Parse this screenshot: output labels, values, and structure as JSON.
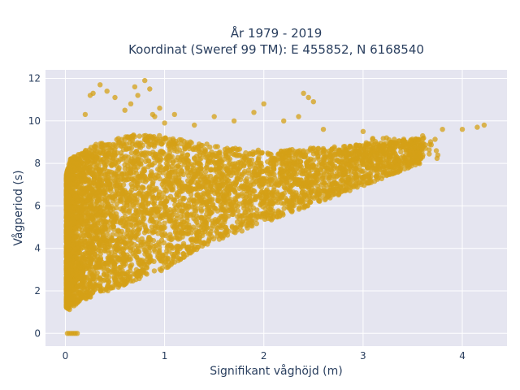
{
  "chart_data": {
    "type": "scatter",
    "title_line1": "År 1979 - 2019",
    "title_line2": "Koordinat (Sweref 99 TM): E 455852, N 6168540",
    "xlabel": "Signifikant våghöjd (m)",
    "ylabel": "Vågperiod (s)",
    "xlim": [
      -0.2,
      4.45
    ],
    "ylim": [
      -0.6,
      12.4
    ],
    "x_ticks": [
      0,
      1,
      2,
      3,
      4
    ],
    "y_ticks": [
      0,
      2,
      4,
      6,
      8,
      10,
      12
    ],
    "grid": true,
    "legend": "none",
    "colors": {
      "marker": "#d4a017",
      "plot_background": "#e5e5f0",
      "grid": "#ffffff",
      "text": "#2a3f5f"
    },
    "band": {
      "description_points": "dense cloud sampled from upper and lower envelopes",
      "x": [
        0.01,
        0.05,
        0.1,
        0.2,
        0.3,
        0.5,
        0.7,
        1.0,
        1.3,
        1.6,
        2.0,
        2.4,
        2.8,
        3.2,
        3.6
      ],
      "y_low": [
        1.2,
        1.1,
        1.3,
        1.6,
        1.8,
        2.1,
        2.5,
        3.0,
        3.9,
        4.5,
        5.2,
        5.9,
        6.6,
        7.3,
        8.0
      ],
      "y_high": [
        7.5,
        8.2,
        8.4,
        8.6,
        8.9,
        9.2,
        9.4,
        9.3,
        9.0,
        8.8,
        8.6,
        8.7,
        8.8,
        9.0,
        9.2
      ]
    },
    "zero_points": {
      "x": [
        0.02,
        0.04,
        0.06,
        0.08,
        0.1,
        0.12
      ],
      "y": [
        0,
        0,
        0,
        0,
        0,
        0
      ]
    },
    "outliers": {
      "x": [
        0.35,
        0.42,
        0.5,
        0.6,
        0.66,
        0.7,
        0.73,
        0.8,
        0.85,
        0.88,
        0.9,
        0.95,
        1.0,
        1.1,
        1.3,
        1.5,
        1.7,
        2.0,
        2.2,
        2.4,
        2.45,
        2.5,
        2.6,
        3.0,
        3.6,
        3.8,
        4.0,
        4.15,
        4.22,
        0.2,
        0.25,
        0.28,
        1.9,
        2.35
      ],
      "y": [
        11.7,
        11.4,
        11.1,
        10.5,
        10.8,
        11.6,
        11.2,
        11.9,
        11.5,
        10.3,
        10.2,
        10.6,
        9.9,
        10.3,
        9.8,
        10.2,
        10.0,
        10.8,
        10.0,
        11.3,
        11.1,
        10.9,
        9.6,
        9.5,
        9.3,
        9.6,
        9.6,
        9.7,
        9.8,
        10.3,
        11.2,
        11.3,
        10.4,
        10.2
      ]
    }
  }
}
